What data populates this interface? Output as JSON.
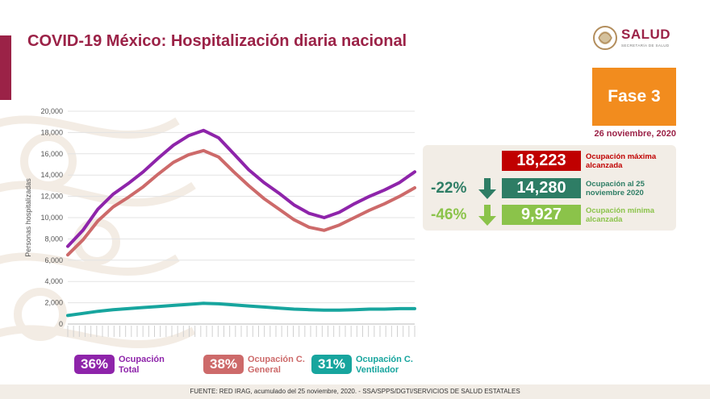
{
  "header": {
    "title": "COVID-19 México: Hospitalización diaria nacional",
    "logo_text": "SALUD",
    "logo_sub": "SECRETARÍA DE SALUD"
  },
  "phase": {
    "label": "Fase 3"
  },
  "date": "26 noviembre, 2020",
  "stats": {
    "max": {
      "value": "18,223",
      "label": "Ocupación máxima alcanzada",
      "color": "#c00000"
    },
    "current": {
      "value": "14,280",
      "label": "Ocupación al 25 noviembre 2020",
      "color": "#2e7d65",
      "pct": "-22%"
    },
    "min": {
      "value": "9,927",
      "label": "Ocupación mínima alcanzada",
      "color": "#8bc34a",
      "pct": "-46%"
    }
  },
  "legend": [
    {
      "pct": "36%",
      "label": "Ocupación Total",
      "color": "#8e24aa"
    },
    {
      "pct": "38%",
      "label": "Ocupación C. General",
      "color": "#cd6a6a"
    },
    {
      "pct": "31%",
      "label": "Ocupación C. Ventilador",
      "color": "#17a59e"
    }
  ],
  "footer": "FUENTE: RED IRAG, acumulado del 25 noviembre, 2020. -  SSA/SPPS/DGTI/SERVICIOS DE SALUD ESTATALES",
  "chart_data": {
    "type": "line",
    "ylabel": "Personas hospitalizadas",
    "ylim": [
      0,
      20000
    ],
    "yticks": [
      "0",
      "2,000",
      "4,000",
      "6,000",
      "8,000",
      "10,000",
      "12,000",
      "14,000",
      "16,000",
      "18,000",
      "20,000"
    ],
    "grid": true,
    "x": [
      0,
      10,
      20,
      30,
      40,
      50,
      60,
      70,
      80,
      90,
      100,
      110,
      120,
      130,
      140,
      150,
      160,
      170,
      180,
      190,
      200,
      210,
      220,
      230
    ],
    "series": [
      {
        "name": "Ocupación Total",
        "color": "#8e24aa",
        "values": [
          7300,
          8800,
          10800,
          12200,
          13200,
          14300,
          15600,
          16800,
          17700,
          18200,
          17500,
          16000,
          14500,
          13300,
          12300,
          11200,
          10400,
          10000,
          10500,
          11300,
          12000,
          12600,
          13300,
          14300
        ]
      },
      {
        "name": "Ocupación C. General",
        "color": "#cd6a6a",
        "values": [
          6500,
          7900,
          9700,
          11000,
          11900,
          12900,
          14100,
          15200,
          15900,
          16300,
          15700,
          14300,
          13000,
          11800,
          10800,
          9800,
          9100,
          8800,
          9300,
          10000,
          10700,
          11300,
          12000,
          12800
        ]
      },
      {
        "name": "Ocupación C. Ventilador",
        "color": "#17a59e",
        "values": [
          800,
          1000,
          1200,
          1350,
          1450,
          1550,
          1650,
          1750,
          1850,
          1950,
          1900,
          1800,
          1700,
          1600,
          1500,
          1400,
          1350,
          1300,
          1300,
          1350,
          1400,
          1400,
          1450,
          1450
        ]
      }
    ]
  }
}
